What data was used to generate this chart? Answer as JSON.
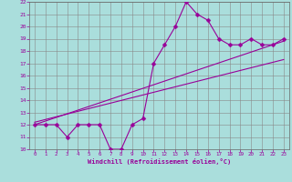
{
  "xlabel": "Windchill (Refroidissement éolien,°C)",
  "bg_color": "#aadedc",
  "line_color": "#990099",
  "grid_color": "#888888",
  "xlim": [
    -0.5,
    23.5
  ],
  "ylim": [
    10,
    22
  ],
  "xticks": [
    0,
    1,
    2,
    3,
    4,
    5,
    6,
    7,
    8,
    9,
    10,
    11,
    12,
    13,
    14,
    15,
    16,
    17,
    18,
    19,
    20,
    21,
    22,
    23
  ],
  "yticks": [
    10,
    11,
    12,
    13,
    14,
    15,
    16,
    17,
    18,
    19,
    20,
    21,
    22
  ],
  "data_x": [
    0,
    1,
    2,
    3,
    4,
    5,
    6,
    7,
    8,
    9,
    10,
    11,
    12,
    13,
    14,
    15,
    16,
    17,
    18,
    19,
    20,
    21,
    22,
    23
  ],
  "data_y": [
    12,
    12,
    12,
    11,
    12,
    12,
    12,
    10,
    10,
    12,
    12.5,
    17,
    18.5,
    20,
    22,
    21,
    20.5,
    19,
    18.5,
    18.5,
    19,
    18.5,
    18.5,
    19
  ],
  "trend1_x": [
    0,
    23
  ],
  "trend1_y": [
    12.0,
    18.8
  ],
  "trend2_x": [
    0,
    23
  ],
  "trend2_y": [
    12.2,
    17.3
  ],
  "markersize": 2.5,
  "linewidth": 0.8
}
